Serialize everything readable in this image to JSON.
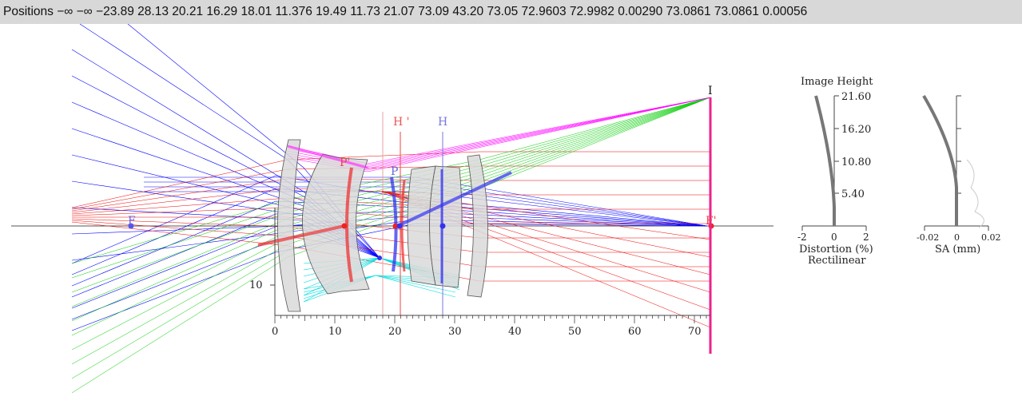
{
  "header": {
    "label": "Positions",
    "values": "−∞ −∞ −23.89 28.13 20.21 16.29 18.01 11.376 19.49 11.73 21.07 73.09 43.20 73.05 72.9603 72.9982 0.00290 73.0861  73.0861 0.00056"
  },
  "diagram": {
    "points": {
      "front_focus": "F",
      "rear_focus": "F'",
      "principal_h": "H",
      "principal_h_prime": "H '",
      "pupil_p": "P",
      "pupil_p_prime": "P'",
      "image": "I"
    },
    "axis": {
      "ticks": [
        "0",
        "10",
        "20",
        "30",
        "40",
        "50",
        "60",
        "70"
      ],
      "vertical_label": "10"
    },
    "colors": {
      "ray_blue": "#0000ff",
      "ray_red": "#ee0000",
      "ray_green": "#00cc00",
      "ray_magenta": "#ff00ff",
      "ray_cyan": "#00dddd",
      "lens_fill": "#d9d9d9",
      "image_plane": "#ee2288"
    }
  },
  "distortion_plot": {
    "title": "Image Height",
    "y_ticks": [
      "21.60",
      "16.20",
      "10.80",
      "5.40"
    ],
    "x_ticks": [
      "-2",
      "0",
      "2"
    ],
    "xlabel": "Distortion (%)",
    "sublabel": "Rectilinear"
  },
  "sa_plot": {
    "x_ticks": [
      "-0.02",
      "0",
      "0.02"
    ],
    "xlabel": "SA (mm)"
  }
}
